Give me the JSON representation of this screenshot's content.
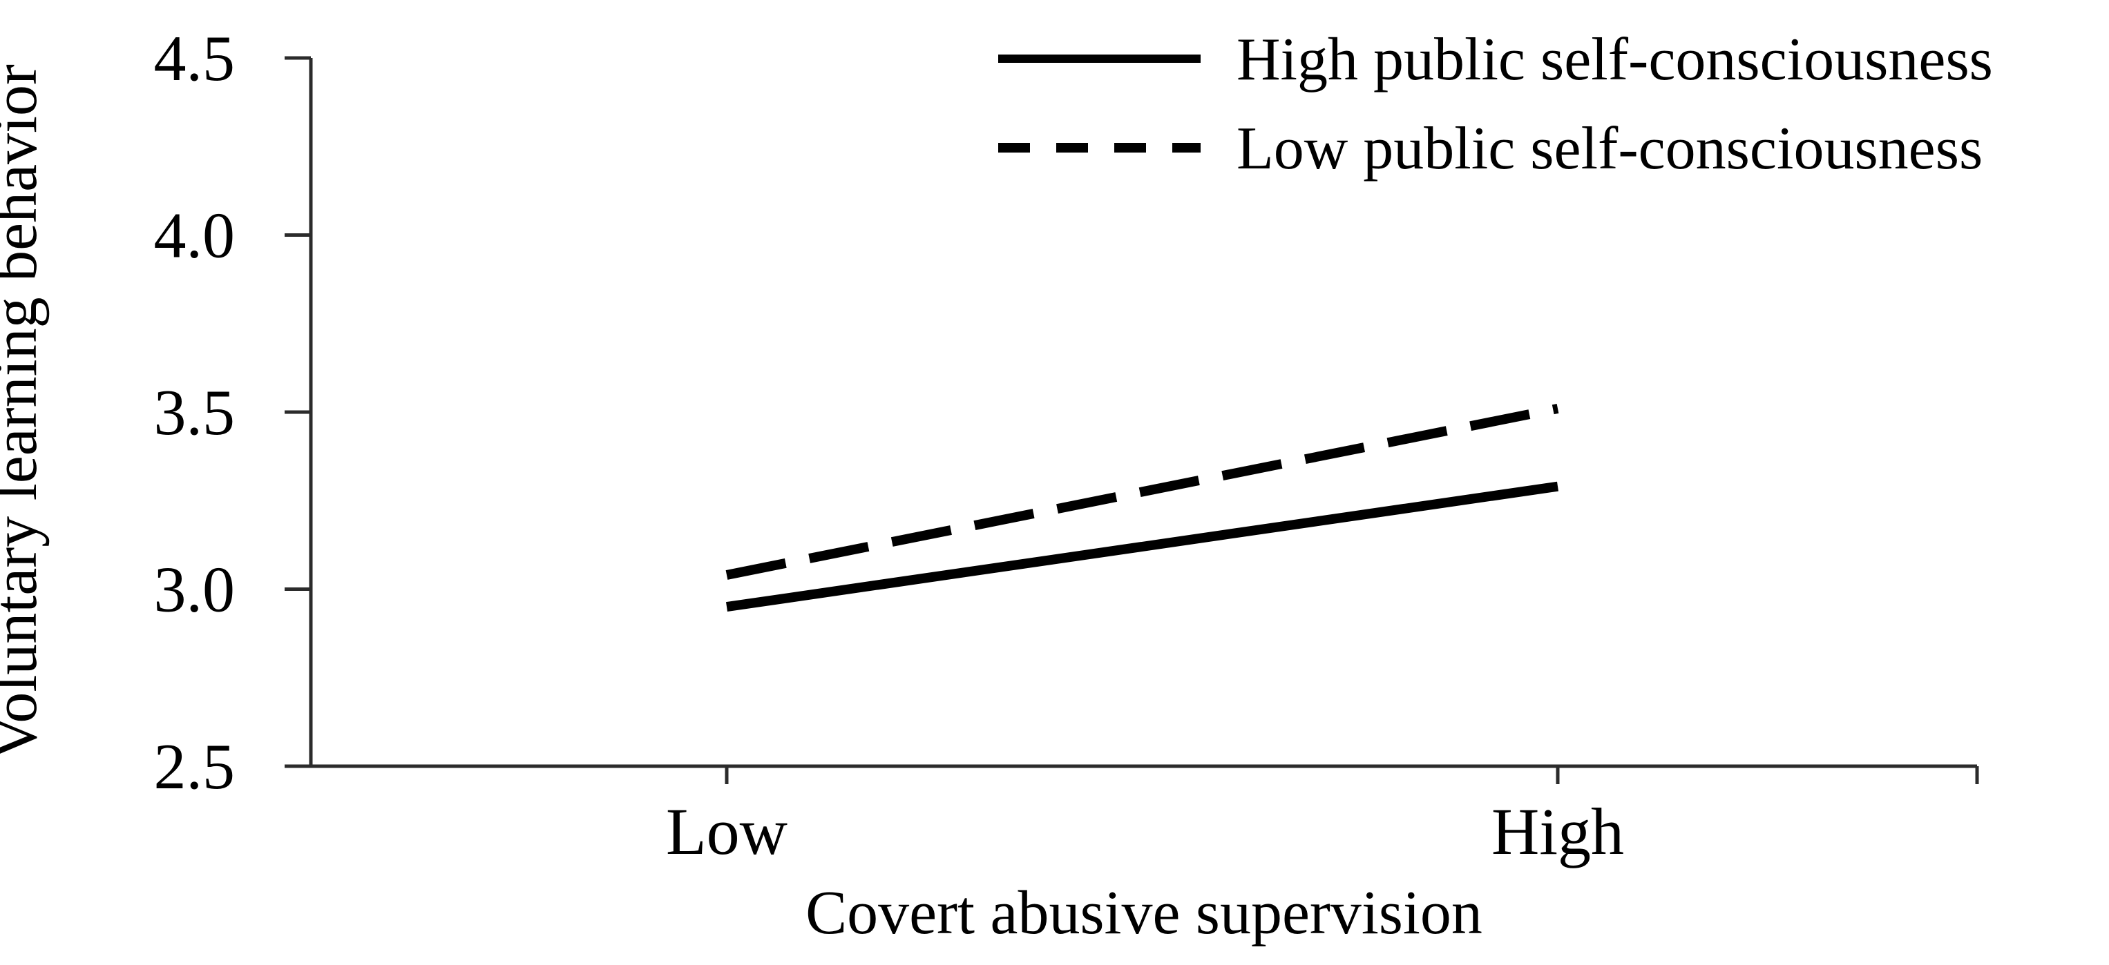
{
  "figure": {
    "background": "#ffffff"
  },
  "chart_data": {
    "type": "line",
    "title": "",
    "categories": [
      "Low",
      "High"
    ],
    "series": [
      {
        "name": "High public self-consciousness",
        "line_style": "solid",
        "values": [
          2.95,
          3.29
        ]
      },
      {
        "name": "Low public self-consciousness",
        "line_style": "dashed",
        "values": [
          3.04,
          3.51
        ]
      }
    ],
    "xlabel": "Covert abusive supervision",
    "ylabel": "Voluntary learning behavior",
    "ylim": [
      2.5,
      4.5
    ],
    "yticks": [
      2.5,
      3.0,
      3.5,
      4.0,
      4.5
    ],
    "ytick_labels": [
      "2.5",
      "3.0",
      "3.5",
      "4.0",
      "4.5"
    ],
    "grid": false,
    "legend_position": "top-right",
    "line_color": "#000000",
    "axis_color": "#2b2b2b",
    "text_color": "#000000"
  }
}
